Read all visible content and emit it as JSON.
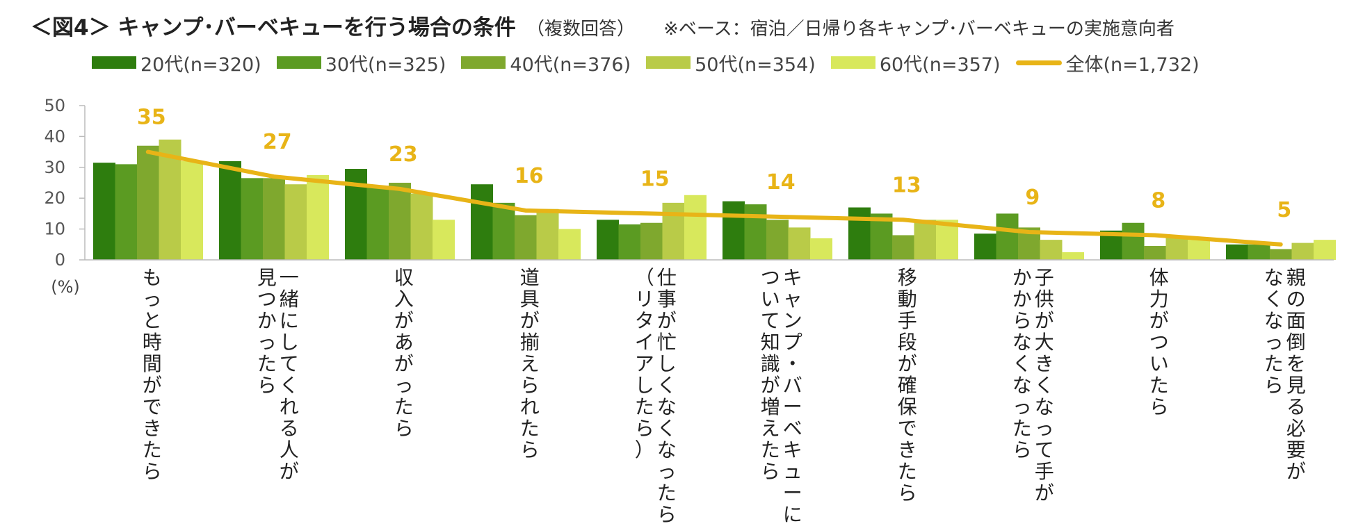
{
  "header": {
    "title": "＜図4＞ キャンプ･バーベキューを行う場合の条件",
    "subtitle": "（複数回答）",
    "note": "※ベース：宿泊／日帰り各キャンプ･バーベキューの実施意向者"
  },
  "chart_data": {
    "type": "bar",
    "ylim": [
      0,
      50
    ],
    "yticks": [
      "50",
      "40",
      "30",
      "20",
      "10",
      "0"
    ],
    "unit_label": "(%)",
    "grid": false,
    "legend_position": "top",
    "categories": [
      [
        "もっと時間ができたら"
      ],
      [
        "見つかったら",
        "一緒にしてくれる人が"
      ],
      [
        "収入があがったら"
      ],
      [
        "道具が揃えられたら"
      ],
      [
        "（リタイアしたら）",
        "仕事が忙しくなくなったら"
      ],
      [
        "ついて知識が増えたら",
        "キャンプ・バーベキューに"
      ],
      [
        "移動手段が確保できたら"
      ],
      [
        "かからなくなったら",
        "子供が大きくなって手が"
      ],
      [
        "体力がついたら"
      ],
      [
        "なくなったら",
        "親の面倒を見る必要が"
      ]
    ],
    "series": [
      {
        "name": "20代(n=320)",
        "color": "#2E7D0E",
        "values": [
          31.5,
          32,
          29.5,
          24.5,
          13,
          19,
          17,
          8.5,
          9.5,
          5
        ]
      },
      {
        "name": "30代(n=325)",
        "color": "#5B9B22",
        "values": [
          31,
          26.5,
          24,
          18.5,
          11.5,
          18,
          15,
          15,
          12,
          5
        ]
      },
      {
        "name": "40代(n=376)",
        "color": "#7FA82E",
        "values": [
          37,
          26.5,
          25,
          14.5,
          12,
          13,
          8,
          10.5,
          4.5,
          3.5
        ]
      },
      {
        "name": "50代(n=354)",
        "color": "#B9CB48",
        "values": [
          39,
          24.5,
          21.5,
          16.5,
          18.5,
          10.5,
          13,
          6.5,
          7.5,
          5.5
        ]
      },
      {
        "name": "60代(n=357)",
        "color": "#D8E85C",
        "values": [
          32,
          27.5,
          13,
          10,
          21,
          7,
          13,
          2.5,
          6.5,
          6.5
        ]
      }
    ],
    "total": {
      "name": "全体(n=1,732)",
      "color": "#E8B417",
      "values": [
        35,
        27,
        23,
        16,
        15,
        14,
        13,
        9,
        8,
        5
      ]
    }
  }
}
